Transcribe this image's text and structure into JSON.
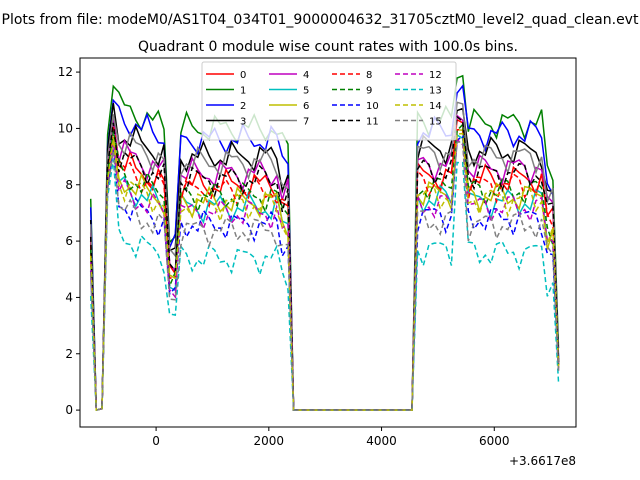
{
  "chart_data": {
    "type": "line",
    "suptitle": "Plots from file: modeM0/AS1T04_034T01_9000004632_31705cztM0_level2_quad_clean.evt",
    "title": "Quadrant 0 module wise count rates with 100.0s bins.",
    "xlabel": "",
    "ylabel": "",
    "offset_label": "+3.6617e8",
    "xlim": [
      -1350,
      7450
    ],
    "ylim": [
      -0.6,
      12.5
    ],
    "xticks": [
      0,
      2000,
      4000,
      6000
    ],
    "xtick_labels": [
      "0",
      "2000",
      "4000",
      "6000"
    ],
    "yticks": [
      0,
      2,
      4,
      6,
      8,
      10,
      12
    ],
    "ytick_labels": [
      "0",
      "2",
      "4",
      "6",
      "8",
      "10",
      "12"
    ],
    "grid": false,
    "legend_position": "upper-center",
    "legend_columns": 4,
    "series": [
      {
        "name": "0",
        "color": "#ff0000",
        "dash": "solid",
        "base": 8.0,
        "peak_l": 10.4,
        "peak_r": 10.2,
        "end": 1.6
      },
      {
        "name": "1",
        "color": "#008000",
        "dash": "solid",
        "base": 10.0,
        "peak_l": 11.5,
        "peak_r": 11.9,
        "end": 2.2
      },
      {
        "name": "2",
        "color": "#0000ff",
        "dash": "solid",
        "base": 9.6,
        "peak_l": 11.0,
        "peak_r": 11.4,
        "end": 1.9
      },
      {
        "name": "3",
        "color": "#000000",
        "dash": "solid",
        "base": 9.0,
        "peak_l": 10.9,
        "peak_r": 10.6,
        "end": 1.8
      },
      {
        "name": "4",
        "color": "#bf00bf",
        "dash": "solid",
        "base": 8.4,
        "peak_l": 10.3,
        "peak_r": 10.4,
        "end": 1.7
      },
      {
        "name": "5",
        "color": "#00bfbf",
        "dash": "solid",
        "base": 7.2,
        "peak_l": 9.6,
        "peak_r": 9.8,
        "end": 1.5
      },
      {
        "name": "6",
        "color": "#bfbf00",
        "dash": "solid",
        "base": 7.4,
        "peak_l": 9.7,
        "peak_r": 9.9,
        "end": 1.5
      },
      {
        "name": "7",
        "color": "#808080",
        "dash": "solid",
        "base": 8.8,
        "peak_l": 10.5,
        "peak_r": 10.8,
        "end": 1.7
      },
      {
        "name": "8",
        "color": "#ff0000",
        "dash": "dashed",
        "base": 7.8,
        "peak_l": 10.1,
        "peak_r": 10.0,
        "end": 1.6
      },
      {
        "name": "9",
        "color": "#008000",
        "dash": "dashed",
        "base": 7.6,
        "peak_l": 9.9,
        "peak_r": 10.1,
        "end": 1.6
      },
      {
        "name": "10",
        "color": "#0000ff",
        "dash": "dashed",
        "base": 6.6,
        "peak_l": 9.3,
        "peak_r": 9.6,
        "end": 1.4
      },
      {
        "name": "11",
        "color": "#000000",
        "dash": "dashed",
        "base": 8.2,
        "peak_l": 10.2,
        "peak_r": 10.3,
        "end": 1.7
      },
      {
        "name": "12",
        "color": "#bf00bf",
        "dash": "dashed",
        "base": 7.0,
        "peak_l": 9.5,
        "peak_r": 9.6,
        "end": 1.4
      },
      {
        "name": "13",
        "color": "#00bfbf",
        "dash": "dashed",
        "base": 5.4,
        "peak_l": 8.9,
        "peak_r": 8.8,
        "end": 1.0
      },
      {
        "name": "14",
        "color": "#bfbf00",
        "dash": "dashed",
        "base": 7.3,
        "peak_l": 9.6,
        "peak_r": 9.7,
        "end": 1.5
      },
      {
        "name": "15",
        "color": "#808080",
        "dash": "dashed",
        "base": 6.4,
        "peak_l": 9.2,
        "peak_r": 9.5,
        "end": 1.4
      }
    ]
  }
}
